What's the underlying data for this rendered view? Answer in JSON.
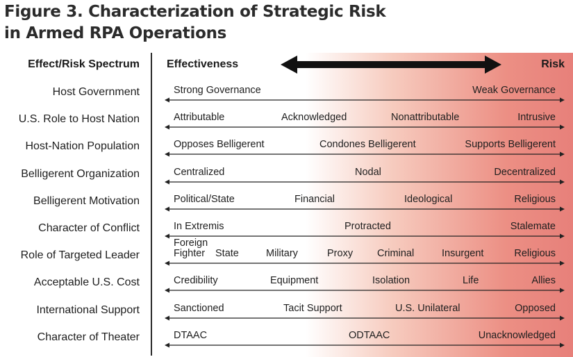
{
  "title": {
    "line1": "Figure 3. Characterization of Strategic Risk",
    "line2": "in Armed RPA Operations"
  },
  "header": {
    "left": "Effect/Risk Spectrum",
    "effectiveness": "Effectiveness",
    "risk": "Risk"
  },
  "colors": {
    "gradient_end": "#e7807a",
    "arrow": "#111111"
  },
  "rows": [
    {
      "label": "Host Government",
      "values": [
        "Strong Governance",
        "Weak Governance"
      ]
    },
    {
      "label": "U.S. Role to Host Nation",
      "values": [
        "Attributable",
        "Acknowledged",
        "Nonattributable",
        "Intrusive"
      ]
    },
    {
      "label": "Host-Nation Population",
      "values": [
        "Opposes Belligerent",
        "Condones Belligerent",
        "Supports Belligerent"
      ]
    },
    {
      "label": "Belligerent Organization",
      "values": [
        "Centralized",
        "Nodal",
        "Decentralized"
      ]
    },
    {
      "label": "Belligerent Motivation",
      "values": [
        "Political/State",
        "Financial",
        "Ideological",
        "Religious"
      ]
    },
    {
      "label": "Character of Conflict",
      "values": [
        "In Extremis",
        "Protracted",
        "Stalemate"
      ]
    },
    {
      "label": "Role of Targeted Leader",
      "values": [
        "Foreign\nFighter",
        "State",
        "Military",
        "Proxy",
        "Criminal",
        "Insurgent",
        "Religious"
      ]
    },
    {
      "label": "Acceptable U.S. Cost",
      "values": [
        "Credibility",
        "Equipment",
        "Isolation",
        "Life",
        "Allies"
      ]
    },
    {
      "label": "International Support",
      "values": [
        "Sanctioned",
        "Tacit Support",
        "U.S. Unilateral",
        "Opposed"
      ]
    },
    {
      "label": "Character of Theater",
      "values": [
        "DTAAC",
        "ODTAAC",
        "Unacknowledged"
      ]
    }
  ]
}
